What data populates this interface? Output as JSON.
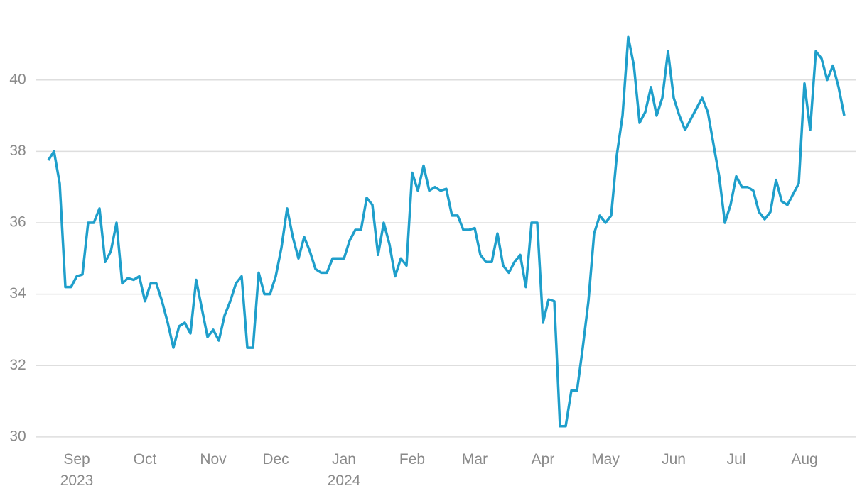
{
  "chart_data": {
    "type": "line",
    "categories": [
      null,
      null,
      null,
      null,
      null,
      "Sep 2023",
      null,
      null,
      null,
      null,
      null,
      null,
      null,
      null,
      null,
      null,
      null,
      "Oct",
      null,
      null,
      null,
      null,
      null,
      null,
      null,
      null,
      null,
      null,
      null,
      "Nov",
      null,
      null,
      null,
      null,
      null,
      null,
      null,
      null,
      null,
      null,
      "Dec",
      null,
      null,
      null,
      null,
      null,
      null,
      null,
      null,
      null,
      null,
      null,
      "Jan 2024",
      null,
      null,
      null,
      null,
      null,
      null,
      null,
      null,
      null,
      null,
      null,
      "Feb",
      null,
      null,
      null,
      null,
      null,
      null,
      null,
      null,
      null,
      null,
      "Mar",
      null,
      null,
      null,
      null,
      null,
      null,
      null,
      null,
      null,
      null,
      null,
      "Apr",
      null,
      null,
      null,
      null,
      null,
      null,
      null,
      null,
      null,
      null,
      "May",
      null,
      null,
      null,
      null,
      null,
      null,
      null,
      null,
      null,
      null,
      null,
      "Jun",
      null,
      null,
      null,
      null,
      null,
      null,
      null,
      null,
      null,
      null,
      "Jul",
      null,
      null,
      null,
      null,
      null,
      null,
      null,
      null,
      null,
      null,
      null,
      "Aug",
      null,
      null,
      null,
      null,
      null,
      null,
      null
    ],
    "series": [
      {
        "color": "#1f9fcb",
        "values": [
          37.75,
          38.0,
          37.1,
          34.2,
          34.2,
          34.5,
          34.55,
          36.0,
          36.0,
          36.4,
          34.9,
          35.2,
          36.0,
          34.3,
          34.45,
          34.4,
          34.5,
          33.8,
          34.3,
          34.3,
          33.8,
          33.2,
          32.5,
          33.1,
          33.2,
          32.9,
          34.4,
          33.6,
          32.8,
          33.0,
          32.7,
          33.4,
          33.8,
          34.3,
          34.5,
          32.5,
          32.5,
          34.6,
          34.0,
          34.0,
          34.5,
          35.3,
          36.4,
          35.6,
          35.0,
          35.6,
          35.2,
          34.7,
          34.6,
          34.6,
          35.0,
          35.0,
          35.0,
          35.5,
          35.8,
          35.8,
          36.7,
          36.5,
          35.1,
          36.0,
          35.4,
          34.5,
          35.0,
          34.8,
          37.4,
          36.9,
          37.6,
          36.9,
          37.0,
          36.9,
          36.95,
          36.2,
          36.2,
          35.8,
          35.8,
          35.85,
          35.1,
          34.9,
          34.9,
          35.7,
          34.8,
          34.6,
          34.9,
          35.1,
          34.2,
          36.0,
          36.0,
          33.2,
          33.85,
          33.8,
          30.3,
          30.3,
          31.3,
          31.3,
          32.5,
          33.8,
          35.7,
          36.2,
          36.0,
          36.2,
          37.9,
          39.0,
          41.2,
          40.4,
          38.8,
          39.1,
          39.8,
          39.0,
          39.5,
          40.8,
          39.5,
          39.0,
          38.6,
          38.9,
          39.2,
          39.5,
          39.1,
          38.2,
          37.3,
          36.0,
          36.5,
          37.3,
          37.0,
          37.0,
          36.9,
          36.3,
          36.1,
          36.3,
          37.2,
          36.6,
          36.5,
          36.8,
          37.1,
          39.9,
          38.6,
          40.8,
          40.6,
          40.0,
          40.4,
          39.8,
          39.0
        ]
      }
    ],
    "ylim": [
      29.7,
      42.2
    ],
    "yticks": [
      30,
      32,
      34,
      36,
      38,
      40
    ],
    "grid": true
  }
}
